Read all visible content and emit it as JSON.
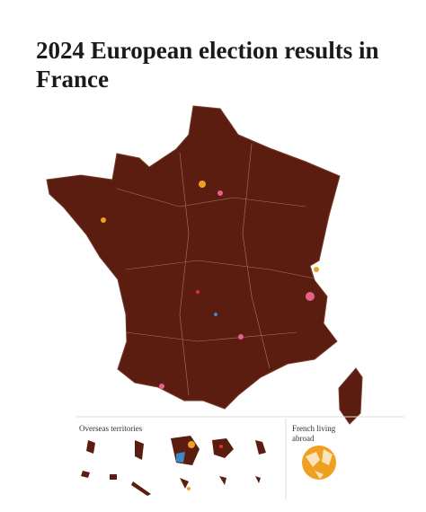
{
  "header": {
    "title": "2024 European election results in France"
  },
  "overseas": {
    "label": "Overseas territories"
  },
  "abroad": {
    "label_lines": [
      "French living",
      "abroad"
    ]
  }
}
